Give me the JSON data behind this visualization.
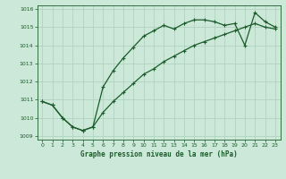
{
  "title": "Graphe pression niveau de la mer (hPa)",
  "bg_color": "#cce8d8",
  "line_color": "#1a5c2a",
  "grid_color": "#aacfbb",
  "xlim": [
    -0.5,
    23.5
  ],
  "ylim": [
    1008.8,
    1016.2
  ],
  "xticks": [
    0,
    1,
    2,
    3,
    4,
    5,
    6,
    7,
    8,
    9,
    10,
    11,
    12,
    13,
    14,
    15,
    16,
    17,
    18,
    19,
    20,
    21,
    22,
    23
  ],
  "yticks": [
    1009,
    1010,
    1011,
    1012,
    1013,
    1014,
    1015,
    1016
  ],
  "series1_x": [
    0,
    1,
    2,
    3,
    4,
    5,
    6,
    7,
    8,
    9,
    10,
    11,
    12,
    13,
    14,
    15,
    16,
    17,
    18,
    19,
    20,
    21,
    22,
    23
  ],
  "series1_y": [
    1010.9,
    1010.7,
    1010.0,
    1009.5,
    1009.3,
    1009.5,
    1011.7,
    1012.6,
    1013.3,
    1013.9,
    1014.5,
    1014.8,
    1015.1,
    1014.9,
    1015.2,
    1015.4,
    1015.4,
    1015.3,
    1015.1,
    1015.2,
    1014.0,
    1015.8,
    1015.3,
    1015.0
  ],
  "series2_x": [
    0,
    1,
    2,
    3,
    4,
    5,
    6,
    7,
    8,
    9,
    10,
    11,
    12,
    13,
    14,
    15,
    16,
    17,
    18,
    19,
    20,
    21,
    22,
    23
  ],
  "series2_y": [
    1010.9,
    1010.7,
    1010.0,
    1009.5,
    1009.3,
    1009.5,
    1010.3,
    1010.9,
    1011.4,
    1011.9,
    1012.4,
    1012.7,
    1013.1,
    1013.4,
    1013.7,
    1014.0,
    1014.2,
    1014.4,
    1014.6,
    1014.8,
    1015.0,
    1015.2,
    1015.0,
    1014.9
  ]
}
